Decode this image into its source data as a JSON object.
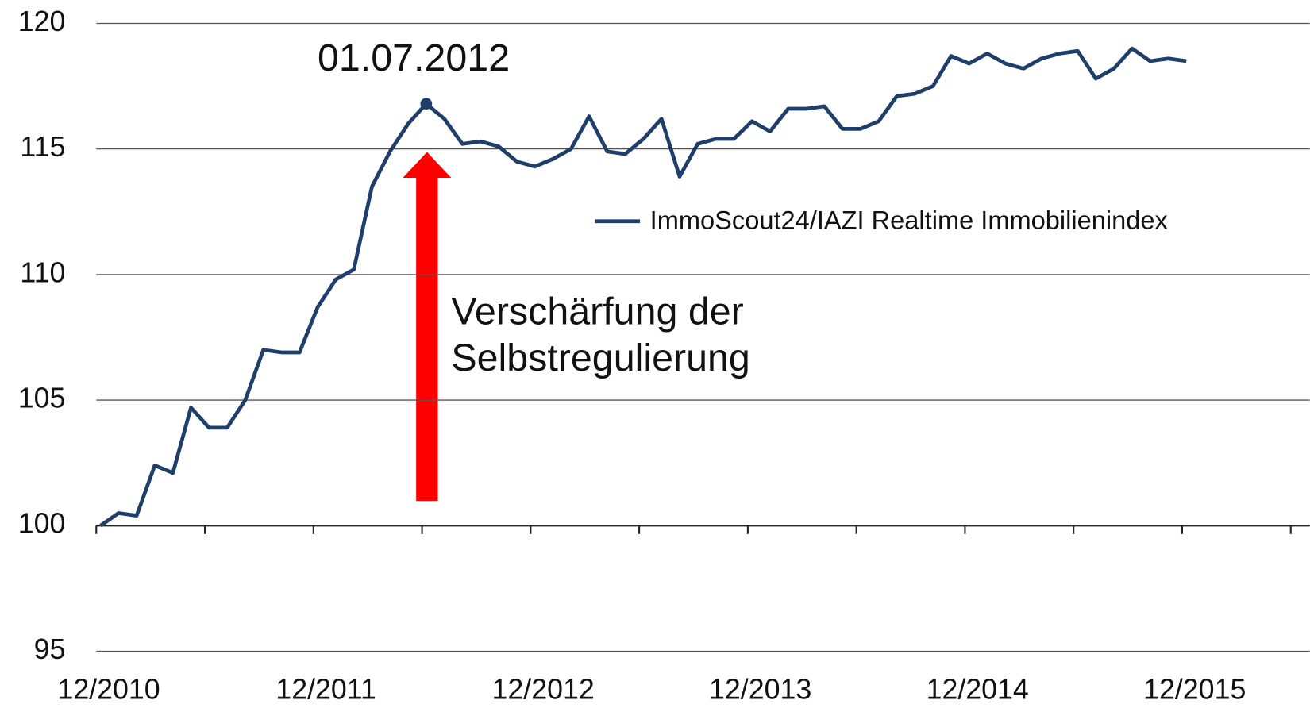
{
  "chart_data": {
    "type": "line",
    "categories": [
      "12/2010",
      "01/2011",
      "02/2011",
      "03/2011",
      "04/2011",
      "05/2011",
      "06/2011",
      "07/2011",
      "08/2011",
      "09/2011",
      "10/2011",
      "11/2011",
      "12/2011",
      "01/2012",
      "02/2012",
      "03/2012",
      "04/2012",
      "05/2012",
      "06/2012",
      "07/2012",
      "08/2012",
      "09/2012",
      "10/2012",
      "11/2012",
      "12/2012",
      "01/2013",
      "02/2013",
      "03/2013",
      "04/2013",
      "05/2013",
      "06/2013",
      "07/2013",
      "08/2013",
      "09/2013",
      "10/2013",
      "11/2013",
      "12/2013",
      "01/2014",
      "02/2014",
      "03/2014",
      "04/2014",
      "05/2014",
      "06/2014",
      "07/2014",
      "08/2014",
      "09/2014",
      "10/2014",
      "11/2014",
      "12/2014",
      "01/2015",
      "02/2015",
      "03/2015",
      "04/2015",
      "05/2015",
      "06/2015",
      "07/2015",
      "08/2015",
      "09/2015",
      "10/2015",
      "11/2015",
      "12/2015"
    ],
    "series": [
      {
        "name": "ImmoScout24/IAZI Realtime Immobilienindex",
        "color": "#1f3f6b",
        "values": [
          100.0,
          100.5,
          100.4,
          102.4,
          102.1,
          104.7,
          103.9,
          103.9,
          105.0,
          107.0,
          106.9,
          106.9,
          108.7,
          109.8,
          110.2,
          113.5,
          114.9,
          116.0,
          116.8,
          116.2,
          115.2,
          115.3,
          115.1,
          114.5,
          114.3,
          114.6,
          115.0,
          116.3,
          114.9,
          114.8,
          115.4,
          116.2,
          113.9,
          115.2,
          115.4,
          115.4,
          116.1,
          115.7,
          116.6,
          116.6,
          116.7,
          115.8,
          115.8,
          116.1,
          117.1,
          117.2,
          117.5,
          118.7,
          118.4,
          118.8,
          118.4,
          118.2,
          118.6,
          118.8,
          118.9,
          117.8,
          118.2,
          119.0,
          118.5,
          118.6,
          118.5
        ]
      }
    ],
    "xticks": [
      "12/2010",
      "12/2011",
      "12/2012",
      "12/2013",
      "12/2014",
      "12/2015"
    ],
    "ylim": [
      95,
      120
    ],
    "yticks": [
      95,
      100,
      105,
      110,
      115,
      120
    ],
    "grid": true,
    "legend": "upper right",
    "annotations": [
      "01.07.2012",
      "Verschärfung der",
      "Selbstregulierung"
    ]
  }
}
